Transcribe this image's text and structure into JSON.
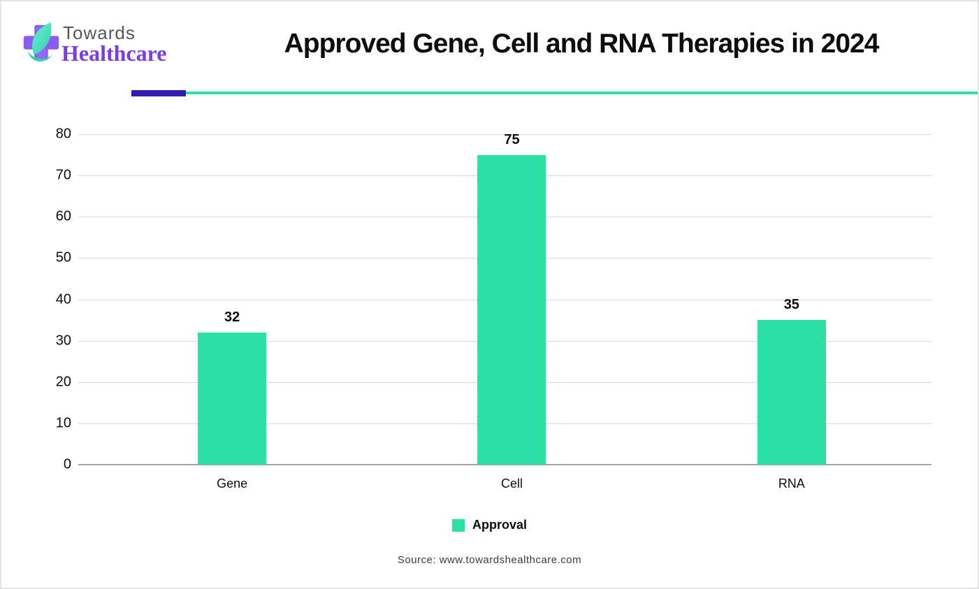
{
  "brand": {
    "name_top": "Towards",
    "name_bottom": "Healthcare",
    "logo_icon": "cross-leaf-logo",
    "colors": {
      "cross_purple": "#8a5cf3",
      "leaf_teal": "#4fe6c2",
      "leaf_teal_dark": "#2bd4a8",
      "name_purple": "#7a3be8",
      "name_gray": "#54575c"
    }
  },
  "header": {
    "title": "Approved Gene, Cell and RNA Therapies in 2024",
    "divider": {
      "accent_color": "#331ab0",
      "line_color": "#2cdfa6"
    }
  },
  "chart_data": {
    "type": "bar",
    "title": "Approved Gene, Cell and RNA Therapies in 2024",
    "categories": [
      "Gene",
      "Cell",
      "RNA"
    ],
    "series": [
      {
        "name": "Approval",
        "values": [
          32,
          75,
          35
        ]
      }
    ],
    "value_labels": [
      "32",
      "75",
      "35"
    ],
    "bar_color": "#2ae0a4",
    "xlabel": "",
    "ylabel": "",
    "ylim": [
      0,
      80
    ],
    "ytick_step": 10,
    "yticks": [
      0,
      10,
      20,
      30,
      40,
      50,
      60,
      70,
      80
    ],
    "grid": true,
    "gridline_color": "#d9d9d9",
    "axis_line_color": "#a6a6a6",
    "legend_position": "bottom"
  },
  "legend": {
    "items": [
      {
        "label": "Approval",
        "color": "#2ae0a4"
      }
    ]
  },
  "footer": {
    "source": "Source: www.towardshealthcare.com"
  }
}
